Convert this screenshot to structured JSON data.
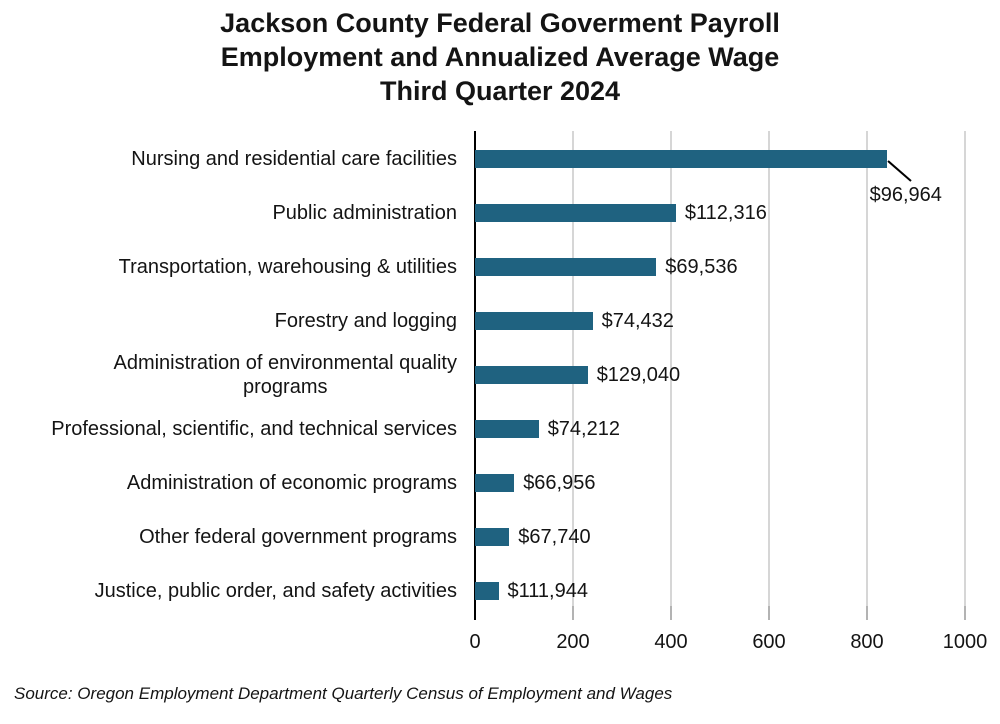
{
  "title": {
    "text": "Jackson County Federal Goverment Payroll\nEmployment and Annualized Average Wage\nThird Quarter 2024"
  },
  "source": "Source: Oregon Employment Department Quarterly Census of Employment and Wages",
  "colors": {
    "bar": "#1f6280",
    "gridline": "#d6d6d6",
    "tick": "#b3b3b3",
    "axis": "#000000",
    "leader_line": "#000000"
  },
  "chart_data": {
    "type": "bar",
    "orientation": "horizontal",
    "title": "Jackson County Federal Goverment Payroll Employment and Annualized Average Wage Third Quarter 2024",
    "categories": [
      "Nursing and residential care facilities",
      "Public administration",
      "Transportation, warehousing & utilities",
      "Forestry and logging",
      "Administration of environmental quality\nprograms",
      "Professional, scientific, and technical services",
      "Administration of economic programs",
      "Other federal government programs",
      "Justice, public order, and safety activities"
    ],
    "series": [
      {
        "name": "Payroll employment (bar length, estimated from axis)",
        "values": [
          840,
          410,
          370,
          240,
          230,
          130,
          80,
          70,
          48
        ]
      },
      {
        "name": "Annualized average wage (data labels)",
        "values": [
          "$96,964",
          "$112,316",
          "$69,536",
          "$74,432",
          "$129,040",
          "$74,212",
          "$66,956",
          "$67,740",
          "$111,944"
        ]
      }
    ],
    "xlabel": "",
    "ylabel": "",
    "xlim": [
      0,
      1000
    ],
    "x_ticks": [
      0,
      200,
      400,
      600,
      800,
      1000
    ],
    "grid": "vertical",
    "legend": "none",
    "annotations": [
      {
        "target": "Nursing and residential care facilities",
        "label": "$96,964",
        "style": "leader line from bar end to label below"
      }
    ]
  }
}
